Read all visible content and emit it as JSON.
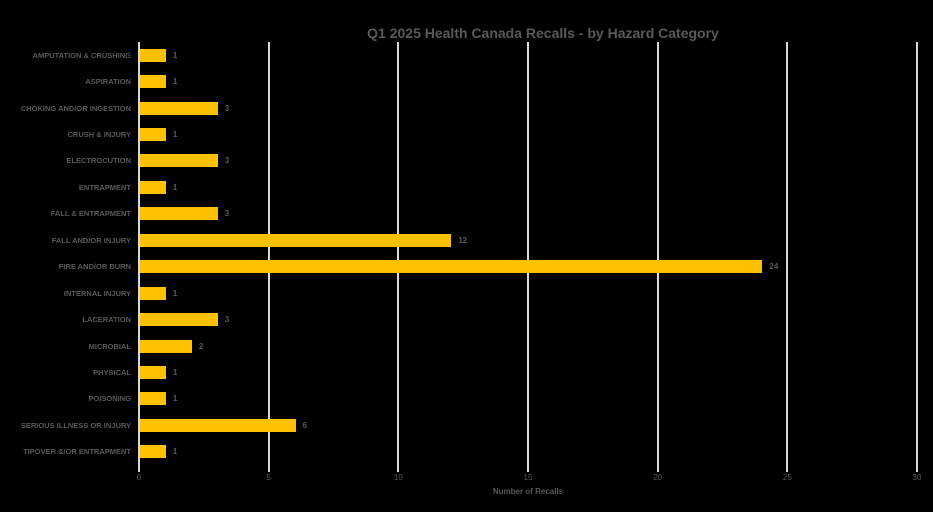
{
  "chart_data": {
    "type": "bar",
    "orientation": "horizontal",
    "title": "Q1 2025 Health Canada Recalls - by Hazard Category",
    "xlabel": "Number of Recalls",
    "ylabel": "",
    "categories": [
      "AMPUTATION & CRUSHING",
      "ASPIRATION",
      "CHOKING AND/OR INGESTION",
      "CRUSH & INJURY",
      "ELECTROCUTION",
      "ENTRAPMENT",
      "FALL & ENTRAPMENT",
      "FALL AND/OR INJURY",
      "FIRE AND/OR BURN",
      "INTERNAL INJURY",
      "LACERATION",
      "MICROBIAL",
      "PHYSICAL",
      "POISONING",
      "SERIOUS ILLNESS OR INJURY",
      "TIPOVER &/OR ENTRAPMENT"
    ],
    "values": [
      1,
      1,
      3,
      1,
      3,
      1,
      3,
      12,
      24,
      1,
      3,
      2,
      1,
      1,
      6,
      1
    ],
    "xlim": [
      0,
      30
    ],
    "xticks": [
      0,
      5,
      10,
      15,
      20,
      25,
      30
    ],
    "grid": true,
    "data_labels": true,
    "legend": false,
    "colors": {
      "bar": "#FFC000",
      "gridline": "#D9D9D9",
      "text": "#595959",
      "background": "#000000"
    }
  }
}
